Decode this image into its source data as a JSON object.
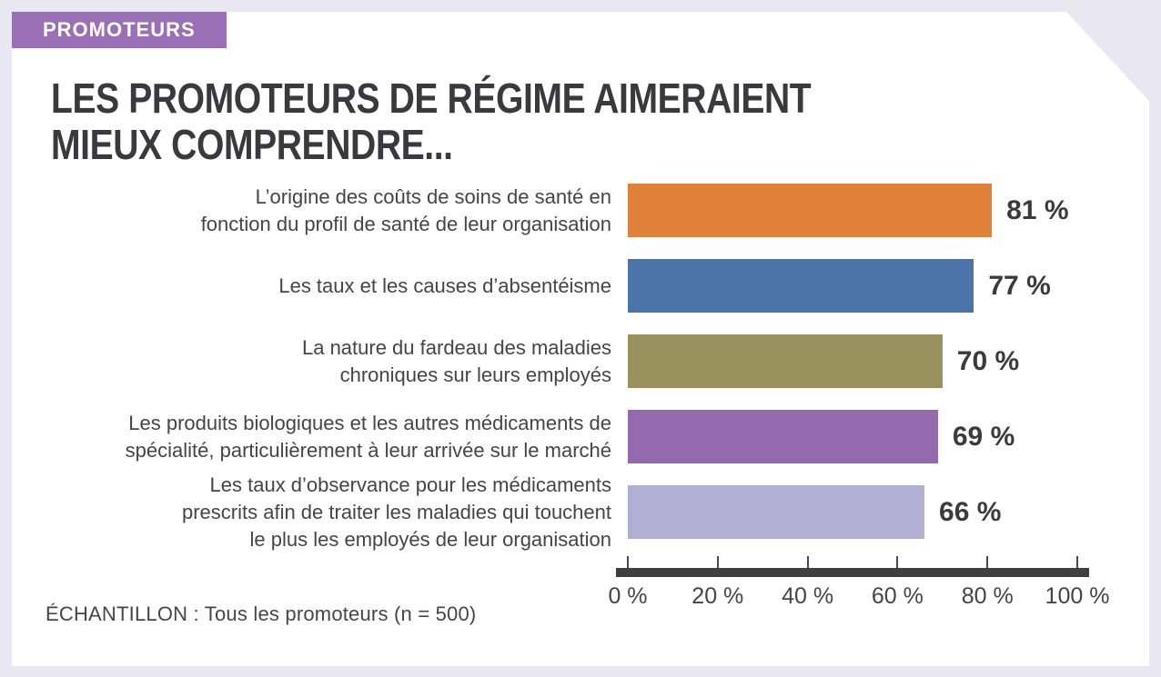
{
  "page": {
    "background_color": "#E8E7F2",
    "card_color": "#FFFFFF"
  },
  "badge": {
    "label": "PROMOTEURS",
    "background_color": "#9A6FB5",
    "text_color": "#FFFFFF"
  },
  "title": {
    "line1": "LES PROMOTEURS DE RÉGIME AIMERAIENT",
    "line2": "MIEUX COMPRENDRE..."
  },
  "footer": {
    "sample_label": "ÉCHANTILLON : Tous les promoteurs (n = 500)"
  },
  "chart_data": {
    "type": "bar",
    "orientation": "horizontal",
    "title": "Les promoteurs de régime aimeraient mieux comprendre...",
    "categories": [
      [
        "L’origine des coûts de soins de santé en",
        "fonction du profil de santé de leur organisation"
      ],
      [
        "Les taux et les causes d’absentéisme"
      ],
      [
        "La nature du fardeau des maladies",
        "chroniques sur leurs employés"
      ],
      [
        "Les produits biologiques et les autres médicaments de",
        "spécialité, particulièrement à leur arrivée sur le marché"
      ],
      [
        "Les taux d’observance pour les médicaments",
        "prescrits afin de traiter les maladies qui touchent",
        "le plus les employés de leur organisation"
      ]
    ],
    "values": [
      81,
      77,
      70,
      69,
      66
    ],
    "value_labels": [
      "81 %",
      "77 %",
      "70 %",
      "69 %",
      "66 %"
    ],
    "bar_colors": [
      "#E0813A",
      "#4B74A8",
      "#99925F",
      "#9569AE",
      "#B1AFD4"
    ],
    "x_ticks": [
      "0 %",
      "20 %",
      "40 %",
      "60 %",
      "80 %",
      "100 %"
    ],
    "xlim": [
      0,
      100
    ],
    "axis_color": "#3F3F3F",
    "grid": false,
    "legend": false
  }
}
